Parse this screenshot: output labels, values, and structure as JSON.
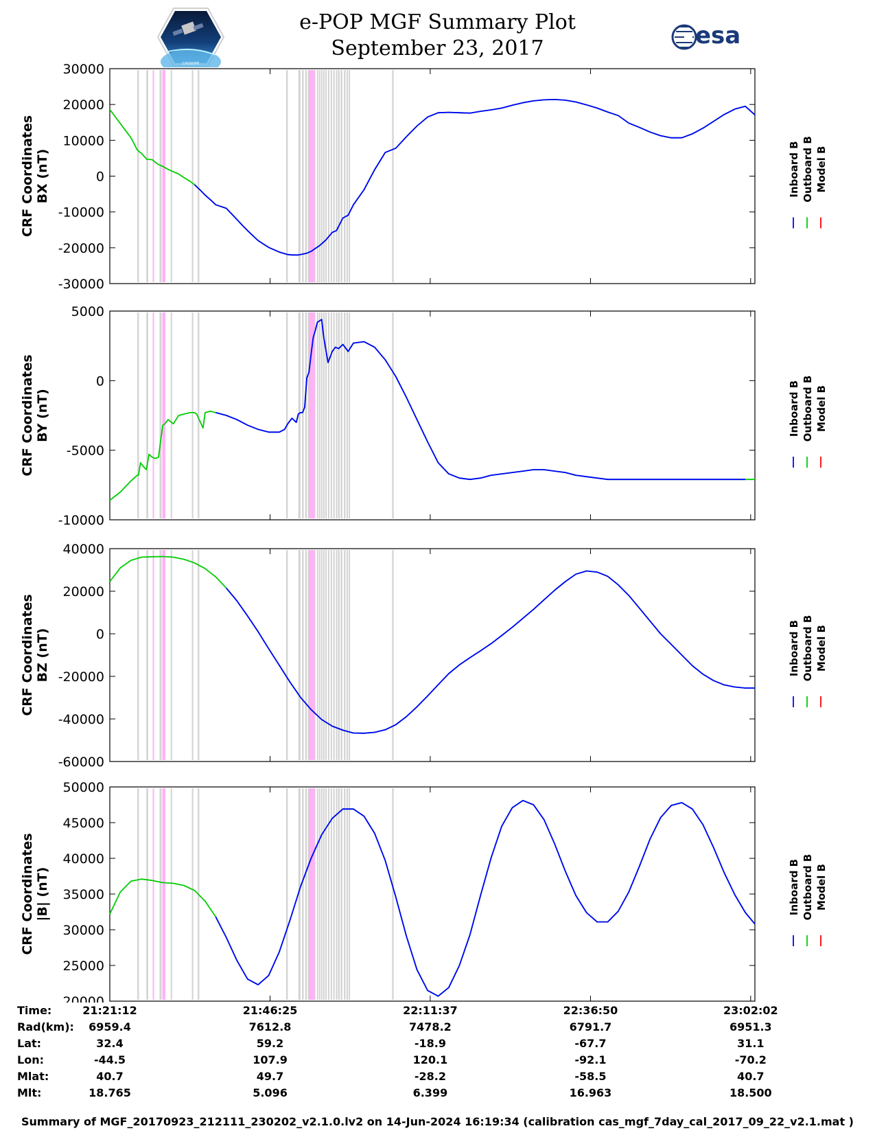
{
  "title": {
    "line1": "e-POP MGF Summary Plot",
    "line2": "September 23, 2017"
  },
  "logos": {
    "left": "cassiope-mission-logo",
    "right_text": "esa"
  },
  "colors": {
    "inboard": "#0000ff",
    "outboard": "#00cc00",
    "model": "#ff0000",
    "gap_gray": "#d3d3d3",
    "gap_pink": "#ffb3f5"
  },
  "legend": [
    "Inboard B",
    "Outboard B",
    "Model B"
  ],
  "time_window": {
    "start_s": 0,
    "end_s": 6090
  },
  "gaps_gray_s": [
    [
      260,
      275
    ],
    [
      345,
      362
    ],
    [
      470,
      488
    ],
    [
      575,
      580
    ],
    [
      775,
      782
    ],
    [
      830,
      845
    ],
    [
      1665,
      1680
    ],
    [
      1780,
      1800
    ],
    [
      1815,
      1830
    ],
    [
      1845,
      1860
    ],
    [
      1870,
      1885
    ],
    [
      1895,
      1905
    ],
    [
      1925,
      1940
    ],
    [
      1955,
      1965
    ],
    [
      1975,
      1985
    ],
    [
      1995,
      2005
    ],
    [
      2015,
      2025
    ],
    [
      2035,
      2045
    ],
    [
      2060,
      2070
    ],
    [
      2085,
      2095
    ],
    [
      2110,
      2120
    ],
    [
      2135,
      2145
    ],
    [
      2155,
      2170
    ],
    [
      2180,
      2195
    ],
    [
      2210,
      2225
    ],
    [
      2235,
      2245
    ],
    [
      2255,
      2265
    ],
    [
      2665,
      2680
    ]
  ],
  "gaps_pink_s": [
    [
      405,
      410
    ],
    [
      495,
      525
    ],
    [
      1880,
      1935
    ]
  ],
  "chart_data": [
    {
      "type": "line",
      "name": "BX",
      "ylabel1": "CRF Coordinates",
      "ylabel2": "BX (nT)",
      "ylim": [
        -30000,
        30000
      ],
      "yticks": [
        "30000",
        "20000",
        "10000",
        "0",
        "-10000",
        "-20000",
        "-30000"
      ],
      "x_s": [
        0,
        200,
        260,
        300,
        350,
        400,
        450,
        500,
        550,
        600,
        650,
        700,
        760,
        800,
        850,
        900,
        950,
        1000,
        1100,
        1200,
        1260,
        1300,
        1400,
        1500,
        1600,
        1680,
        1720,
        1780,
        1800,
        1830,
        1860,
        1900,
        1940,
        1980,
        2000,
        2040,
        2080,
        2100,
        2140,
        2200,
        2250,
        2300,
        2400,
        2500,
        2600,
        2700,
        2800,
        2900,
        3000,
        3100,
        3200,
        3300,
        3400,
        3500,
        3600,
        3700,
        3800,
        3900,
        4000,
        4100,
        4200,
        4300,
        4400,
        4500,
        4600,
        4700,
        4800,
        4900,
        5000,
        5100,
        5200,
        5300,
        5400,
        5500,
        5600,
        5700,
        5800,
        5900,
        6000,
        6090
      ],
      "series": [
        {
          "name": "Outboard B",
          "values": [
            18600,
            10700,
            7300,
            6300,
            4700,
            4600,
            3400,
            2700,
            1900,
            1200,
            600,
            -400,
            -1500,
            -2400,
            -3800,
            -5300,
            -6600,
            -8000,
            -9000,
            -12100,
            -14000,
            -15200,
            -18000,
            -19900,
            -21200,
            -21900,
            -22000,
            -22000,
            -21900,
            -21700,
            -21500,
            -21000,
            -20200,
            -19400,
            -18900,
            -17800,
            -16400,
            -15700,
            -15200,
            -11700,
            -10900,
            -8000,
            -3800,
            1800,
            6600,
            7800,
            11000,
            14000,
            16500,
            17700,
            17800,
            17700,
            17600,
            18100,
            18500,
            19000,
            19800,
            20500,
            21000,
            21300,
            21400,
            21200,
            20700,
            19900,
            19000,
            17900,
            16900,
            14800,
            13600,
            12300,
            11300,
            10700,
            10700,
            11800,
            13400,
            15300,
            17200,
            18700,
            19500,
            17100
          ]
        },
        {
          "name": "Inboard B",
          "start_index": 13,
          "values": [
            -2400,
            -3800,
            -5300,
            -6600,
            -8000,
            -9000,
            -12100,
            -14000,
            -15200,
            -18000,
            -19900,
            -21200,
            -21900,
            -22000,
            -22000,
            -21900,
            -21700,
            -21500,
            -21000,
            -20200,
            -19400,
            -18900,
            -17800,
            -16400,
            -15700,
            -15200,
            -11700,
            -10900,
            -8000,
            -3800,
            1800,
            6600,
            7800,
            11000,
            14000,
            16500,
            17700,
            17800,
            17700,
            17600,
            18100,
            18500,
            19000,
            19800,
            20500,
            21000,
            21300,
            21400,
            21200,
            20700,
            19900,
            19000,
            17900,
            16900,
            14800,
            13600,
            12300,
            11300,
            10700,
            10700,
            11800,
            13400,
            15300,
            17200,
            18700,
            19500,
            17100
          ]
        }
      ]
    },
    {
      "type": "line",
      "name": "BY",
      "ylabel1": "CRF Coordinates",
      "ylabel2": "BY (nT)",
      "ylim": [
        -10000,
        5000
      ],
      "yticks": [
        "5000",
        "0",
        "-5000",
        "-10000"
      ],
      "x_s": [
        0,
        100,
        200,
        260,
        270,
        290,
        320,
        345,
        370,
        400,
        430,
        460,
        480,
        500,
        520,
        550,
        600,
        650,
        700,
        760,
        800,
        820,
        850,
        880,
        900,
        950,
        1000,
        1100,
        1200,
        1300,
        1400,
        1500,
        1600,
        1650,
        1680,
        1700,
        1720,
        1760,
        1780,
        1800,
        1820,
        1840,
        1860,
        1880,
        1900,
        1920,
        1940,
        1960,
        1980,
        2000,
        2020,
        2040,
        2060,
        2080,
        2100,
        2130,
        2160,
        2200,
        2250,
        2300,
        2400,
        2500,
        2600,
        2700,
        2800,
        2900,
        3000,
        3100,
        3200,
        3300,
        3400,
        3500,
        3600,
        3700,
        3800,
        3900,
        4000,
        4100,
        4200,
        4300,
        4400,
        4500,
        4600,
        4700,
        4800,
        4900,
        5000,
        5100,
        5200,
        5300,
        5400,
        5500,
        5600,
        5700,
        5800,
        5900,
        6000,
        6090
      ],
      "series": [
        {
          "name": "Outboard B",
          "values": [
            -8600,
            -8000,
            -7200,
            -6800,
            -6800,
            -5900,
            -6200,
            -6400,
            -5300,
            -5500,
            -5600,
            -5500,
            -4300,
            -3200,
            -3100,
            -2800,
            -3100,
            -2500,
            -2400,
            -2300,
            -2300,
            -2400,
            -2900,
            -3400,
            -2300,
            -2200,
            -2300,
            -2500,
            -2800,
            -3200,
            -3500,
            -3700,
            -3700,
            -3500,
            -3100,
            -2900,
            -2700,
            -3000,
            -2400,
            -2300,
            -2300,
            -1900,
            200,
            600,
            1900,
            3100,
            3600,
            4200,
            4300,
            4400,
            3100,
            2200,
            1300,
            1700,
            2100,
            2400,
            2300,
            2600,
            2100,
            2700,
            2800,
            2400,
            1500,
            300,
            -1200,
            -2800,
            -4400,
            -5900,
            -6700,
            -7000,
            -7100,
            -7000,
            -6800,
            -6700,
            -6600,
            -6500,
            -6400,
            -6400,
            -6500,
            -6600,
            -6800,
            -6900,
            -7000,
            -7100,
            -7100,
            -7100,
            -7100,
            -7100,
            -7100,
            -7100,
            -7100,
            -7100,
            -7100,
            -7100,
            -7100,
            -7100,
            -7100,
            -7100
          ]
        },
        {
          "name": "Inboard B",
          "start_index": 26,
          "values": [
            -2300,
            -2500,
            -2800,
            -3200,
            -3500,
            -3700,
            -3700,
            -3500,
            -3100,
            -2900,
            -2700,
            -3000,
            -2400,
            -2300,
            -2300,
            -1900,
            200,
            600,
            1900,
            3100,
            3600,
            4200,
            4300,
            4400,
            3100,
            2200,
            1300,
            1700,
            2100,
            2400,
            2300,
            2600,
            2100,
            2700,
            2800,
            2400,
            1500,
            300,
            -1200,
            -2800,
            -4400,
            -5900,
            -6700,
            -7000,
            -7100,
            -7000,
            -6800,
            -6700,
            -6600,
            -6500,
            -6400,
            -6400,
            -6500,
            -6600,
            -6800,
            -6900,
            -7000,
            -7100,
            -7100,
            -7100,
            -7100,
            -7100,
            -7100,
            -7100,
            -7100,
            -7100,
            -7100,
            -7100,
            -7100,
            -7100,
            -7100
          ]
        }
      ]
    },
    {
      "type": "line",
      "name": "BZ",
      "ylabel1": "CRF Coordinates",
      "ylabel2": "BZ (nT)",
      "ylim": [
        -60000,
        40000
      ],
      "yticks": [
        "40000",
        "20000",
        "0",
        "-20000",
        "-40000",
        "-60000"
      ],
      "x_s": [
        0,
        100,
        200,
        300,
        400,
        500,
        600,
        700,
        800,
        900,
        1000,
        1100,
        1200,
        1300,
        1400,
        1500,
        1600,
        1700,
        1800,
        1900,
        2000,
        2100,
        2200,
        2300,
        2400,
        2500,
        2600,
        2700,
        2800,
        2900,
        3000,
        3100,
        3200,
        3300,
        3400,
        3500,
        3600,
        3700,
        3800,
        3900,
        4000,
        4100,
        4200,
        4300,
        4400,
        4500,
        4600,
        4700,
        4800,
        4900,
        5000,
        5100,
        5200,
        5300,
        5400,
        5500,
        5600,
        5700,
        5800,
        5900,
        6000,
        6090
      ],
      "series": [
        {
          "name": "Outboard B",
          "values": [
            24500,
            31000,
            34500,
            36000,
            36200,
            36300,
            36000,
            35000,
            33300,
            30600,
            26700,
            21500,
            15500,
            8400,
            1000,
            -7000,
            -14800,
            -22600,
            -29800,
            -35600,
            -40300,
            -43400,
            -45300,
            -46600,
            -46700,
            -46300,
            -45100,
            -42700,
            -38900,
            -34300,
            -29200,
            -23900,
            -18700,
            -14600,
            -11200,
            -8000,
            -4600,
            -800,
            3100,
            7300,
            11500,
            16000,
            20500,
            24500,
            28000,
            29500,
            29000,
            27000,
            23000,
            18000,
            12000,
            6000,
            0,
            -5000,
            -10000,
            -15000,
            -19000,
            -22000,
            -24000,
            -25000,
            -25500,
            -25500
          ]
        },
        {
          "name": "Inboard B",
          "start_index": 11,
          "values": [
            21500,
            15500,
            8400,
            1000,
            -7000,
            -14800,
            -22600,
            -29800,
            -35600,
            -40300,
            -43400,
            -45300,
            -46600,
            -46700,
            -46300,
            -45100,
            -42700,
            -38900,
            -34300,
            -29200,
            -23900,
            -18700,
            -14600,
            -11200,
            -8000,
            -4600,
            -800,
            3100,
            7300,
            11500,
            16000,
            20500,
            24500,
            28000,
            29500,
            29000,
            27000,
            23000,
            18000,
            12000,
            6000,
            0,
            -5000,
            -10000,
            -15000,
            -19000,
            -22000,
            -24000,
            -25000,
            -25500,
            -25500
          ]
        }
      ]
    },
    {
      "type": "line",
      "name": "|B|",
      "ylabel1": "CRF Coordinates",
      "ylabel2": "|B| (nT)",
      "ylim": [
        20000,
        50000
      ],
      "yticks": [
        "50000",
        "45000",
        "40000",
        "35000",
        "30000",
        "25000",
        "20000"
      ],
      "x_s": [
        0,
        100,
        200,
        300,
        400,
        500,
        600,
        700,
        800,
        900,
        1000,
        1100,
        1200,
        1300,
        1400,
        1500,
        1600,
        1700,
        1800,
        1900,
        2000,
        2100,
        2200,
        2300,
        2400,
        2500,
        2600,
        2700,
        2800,
        2900,
        3000,
        3100,
        3200,
        3300,
        3400,
        3500,
        3600,
        3700,
        3800,
        3900,
        4000,
        4100,
        4200,
        4300,
        4400,
        4500,
        4600,
        4700,
        4800,
        4900,
        5000,
        5100,
        5200,
        5300,
        5400,
        5500,
        5600,
        5700,
        5800,
        5900,
        6000,
        6090
      ],
      "series": [
        {
          "name": "Outboard B",
          "values": [
            32200,
            35300,
            36800,
            37100,
            36900,
            36600,
            36500,
            36200,
            35500,
            34000,
            31800,
            28900,
            25700,
            23100,
            22300,
            23600,
            26900,
            31300,
            36000,
            40000,
            43300,
            45600,
            46900,
            46900,
            45900,
            43500,
            39700,
            34600,
            29100,
            24400,
            21500,
            20700,
            21900,
            25000,
            29300,
            34800,
            40100,
            44500,
            47100,
            48100,
            47500,
            45400,
            42000,
            38200,
            34800,
            32400,
            31100,
            31100,
            32600,
            35300,
            38900,
            42700,
            45700,
            47400,
            47800,
            46900,
            44700,
            41500,
            38000,
            34900,
            32400,
            30800
          ]
        },
        {
          "name": "Inboard B",
          "start_index": 10,
          "values": [
            31800,
            28900,
            25700,
            23100,
            22300,
            23600,
            26900,
            31300,
            36000,
            40000,
            43300,
            45600,
            46900,
            46900,
            45900,
            43500,
            39700,
            34600,
            29100,
            24400,
            21500,
            20700,
            21900,
            25000,
            29300,
            34800,
            40100,
            44500,
            47100,
            48100,
            47500,
            45400,
            42000,
            38200,
            34800,
            32400,
            31100,
            31100,
            32600,
            35300,
            38900,
            42700,
            45700,
            47400,
            47800,
            46900,
            44700,
            41500,
            38000,
            34900,
            32400,
            30800
          ]
        }
      ]
    }
  ],
  "info_table": {
    "labels": [
      "Time:",
      "Rad(km):",
      "Lat:",
      "Lon:",
      "Mlat:",
      "Mlt:"
    ],
    "columns": [
      [
        "21:21:12",
        "6959.4",
        "32.4",
        "-44.5",
        "40.7",
        "18.765"
      ],
      [
        "21:46:25",
        "7612.8",
        "59.2",
        "107.9",
        "49.7",
        "5.096"
      ],
      [
        "22:11:37",
        "7478.2",
        "-18.9",
        "120.1",
        "-28.2",
        "6.399"
      ],
      [
        "22:36:50",
        "6791.7",
        "-67.7",
        "-92.1",
        "-58.5",
        "16.963"
      ],
      [
        "23:02:02",
        "6951.3",
        "31.1",
        "-70.2",
        "40.7",
        "18.500"
      ]
    ]
  },
  "footer": "Summary of MGF_20170923_212111_230202_v2.1.0.lv2 on 14-Jun-2024 16:19:34 (calibration cas_mgf_7day_cal_2017_09_22_v2.1.mat )"
}
